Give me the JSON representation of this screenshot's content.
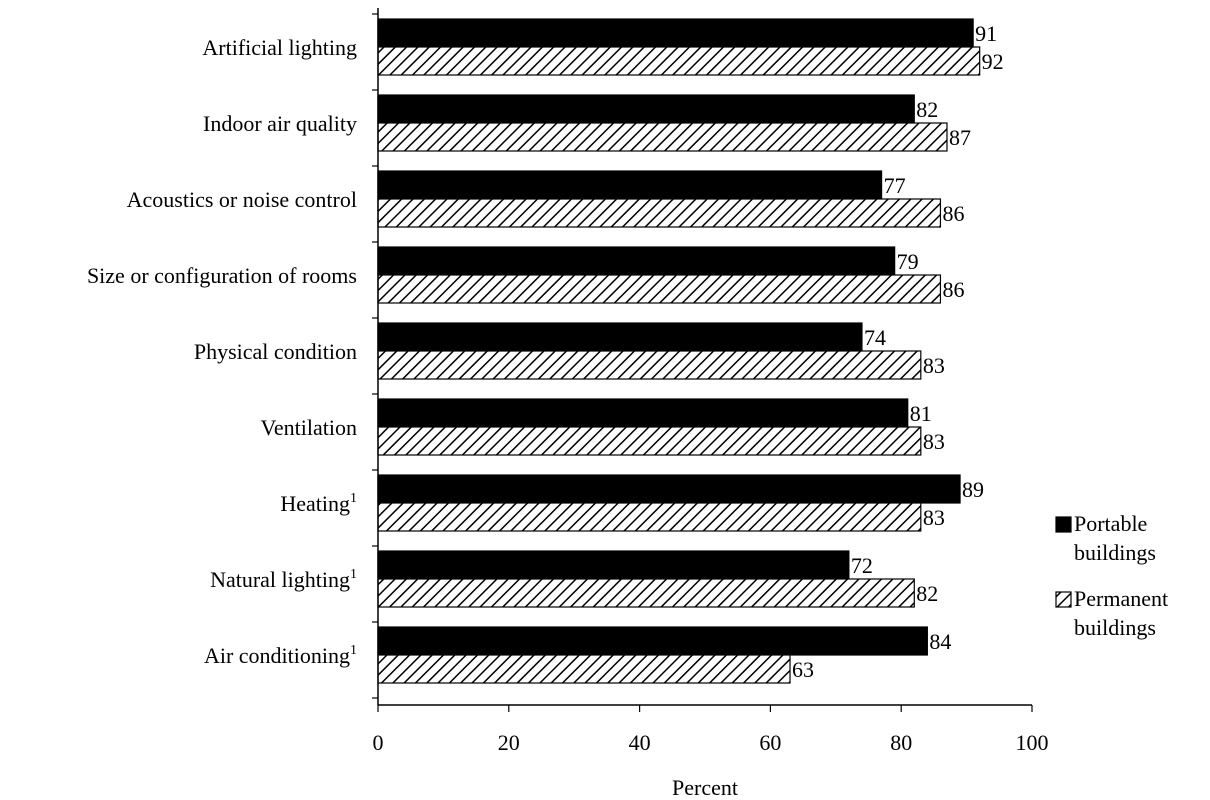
{
  "chart_data": {
    "type": "bar",
    "orientation": "horizontal",
    "categories": [
      "Artificial lighting",
      "Indoor air quality",
      "Acoustics or noise control",
      "Size or configuration of rooms",
      "Physical condition",
      "Ventilation",
      "Heating",
      "Natural lighting",
      "Air conditioning"
    ],
    "category_footnotes": [
      "",
      "",
      "",
      "",
      "",
      "",
      "1",
      "1",
      "1"
    ],
    "series": [
      {
        "name": "Portable buildings",
        "values": [
          91,
          82,
          77,
          79,
          74,
          81,
          89,
          72,
          84
        ],
        "fill": "solid",
        "color": "#000000"
      },
      {
        "name": "Permanent buildings",
        "values": [
          92,
          87,
          86,
          86,
          83,
          83,
          83,
          82,
          63
        ],
        "fill": "diagonal-hatch",
        "color": "#000000"
      }
    ],
    "xlabel": "Percent",
    "ylabel": "",
    "title": "",
    "xlim": [
      0,
      100
    ],
    "xticks": [
      0,
      20,
      40,
      60,
      80,
      100
    ],
    "data_labels": true,
    "grid": false,
    "legend": {
      "placement": "right",
      "entries": [
        {
          "line1": "Portable",
          "line2": "buildings"
        },
        {
          "line1": "Permanent",
          "line2": "buildings"
        }
      ]
    }
  }
}
